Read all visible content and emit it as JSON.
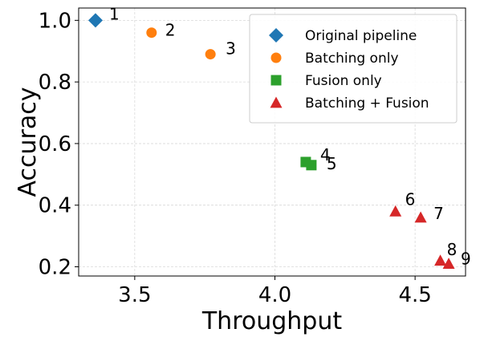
{
  "chart_data": {
    "type": "scatter",
    "xlabel": "Throughput",
    "ylabel": "Accuracy",
    "xlim": [
      3.3,
      4.68
    ],
    "ylim": [
      0.17,
      1.04
    ],
    "xticks": [
      3.5,
      4.0,
      4.5
    ],
    "yticks": [
      0.2,
      0.4,
      0.6,
      0.8,
      1.0
    ],
    "xtick_labels": [
      "3.5",
      "4.0",
      "4.5"
    ],
    "ytick_labels": [
      "0.2",
      "0.4",
      "0.6",
      "0.8",
      "1.0"
    ],
    "grid": true,
    "legend_position": "top-right",
    "series": [
      {
        "name": "Original pipeline",
        "marker": "diamond",
        "color": "#1f77b4",
        "points": [
          {
            "x": 3.36,
            "y": 1.0,
            "label": "1"
          }
        ]
      },
      {
        "name": "Batching only",
        "marker": "circle",
        "color": "#ff7f0e",
        "points": [
          {
            "x": 3.56,
            "y": 0.96,
            "label": "2"
          },
          {
            "x": 3.77,
            "y": 0.89,
            "label": "3"
          }
        ]
      },
      {
        "name": "Fusion only",
        "marker": "square",
        "color": "#2ca02c",
        "points": [
          {
            "x": 4.11,
            "y": 0.54,
            "label": "4"
          },
          {
            "x": 4.13,
            "y": 0.53,
            "label": "5"
          }
        ]
      },
      {
        "name": "Batching + Fusion",
        "marker": "triangle",
        "color": "#d62728",
        "points": [
          {
            "x": 4.43,
            "y": 0.38,
            "label": "6"
          },
          {
            "x": 4.52,
            "y": 0.36,
            "label": "7"
          },
          {
            "x": 4.59,
            "y": 0.22,
            "label": "8"
          },
          {
            "x": 4.62,
            "y": 0.21,
            "label": "9"
          }
        ]
      }
    ]
  }
}
